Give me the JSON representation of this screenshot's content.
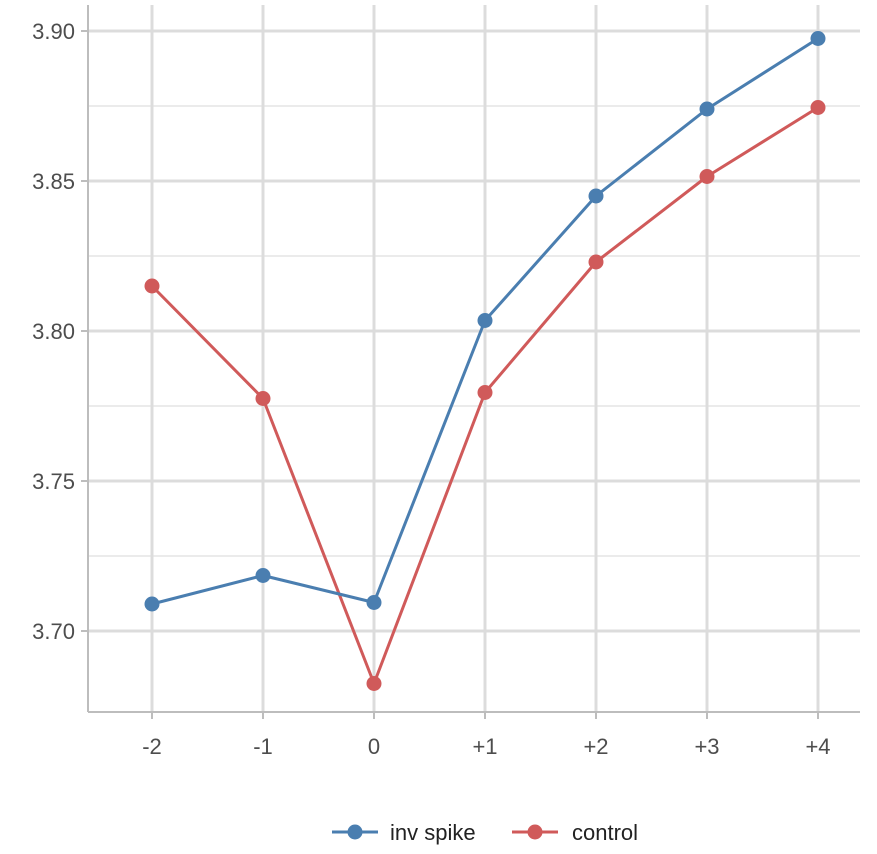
{
  "chart_data": {
    "type": "line",
    "categories": [
      "-2",
      "-1",
      "0",
      "+1",
      "+2",
      "+3",
      "+4"
    ],
    "series": [
      {
        "name": "inv spike",
        "color": "#4A7EB0",
        "values": [
          3.709,
          3.7185,
          3.7095,
          3.8035,
          3.845,
          3.874,
          3.8975
        ]
      },
      {
        "name": "control",
        "color": "#D05A5A",
        "values": [
          3.815,
          3.7775,
          3.6825,
          3.7795,
          3.823,
          3.8515,
          3.8745
        ]
      }
    ],
    "y_ticks": [
      "3.70",
      "3.75",
      "3.80",
      "3.85",
      "3.90"
    ],
    "ylim": [
      3.6725,
      3.9075
    ],
    "title": "",
    "xlabel": "",
    "ylabel": "",
    "grid": true,
    "legend_position": "bottom"
  }
}
